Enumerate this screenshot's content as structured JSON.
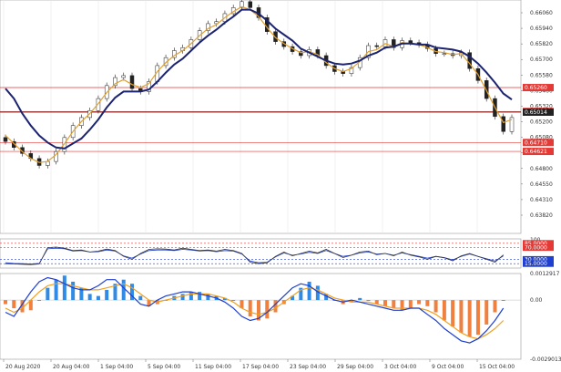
{
  "chart_data": {
    "type": "line",
    "instrument_panels": [
      "price",
      "oscillator",
      "macd"
    ],
    "x_ticks": [
      "20 Aug 2020",
      "20 Aug 04:00",
      "1 Sep 04:00",
      "5 Sep 04:00",
      "11 Sep 04:00",
      "17 Sep 04:00",
      "23 Sep 04:00",
      "29 Sep 04:00",
      "3 Oct 04:00",
      "9 Oct 04:00",
      "15 Oct 04:00"
    ],
    "price": {
      "ylim": [
        0.638,
        0.661
      ],
      "y_ticks": [
        "0.66060",
        "0.65940",
        "0.65820",
        "0.65700",
        "0.65580",
        "0.65460",
        "0.65320",
        "0.65200",
        "0.65080",
        "0.64960",
        "0.64800",
        "0.64550",
        "0.64310",
        "0.63820"
      ],
      "close": [
        0.6472,
        0.6466,
        0.646,
        0.6455,
        0.6448,
        0.6452,
        0.6462,
        0.6476,
        0.6488,
        0.6496,
        0.6503,
        0.6515,
        0.6528,
        0.6536,
        0.6538,
        0.6525,
        0.6522,
        0.6532,
        0.6548,
        0.6556,
        0.6563,
        0.6566,
        0.6574,
        0.6583,
        0.659,
        0.6592,
        0.66,
        0.6606,
        0.6612,
        0.6606,
        0.6596,
        0.6582,
        0.6572,
        0.6567,
        0.6562,
        0.6558,
        0.6564,
        0.6558,
        0.6548,
        0.6542,
        0.654,
        0.6546,
        0.6556,
        0.6568,
        0.6567,
        0.6574,
        0.6566,
        0.6573,
        0.6571,
        0.6569,
        0.6565,
        0.656,
        0.656,
        0.6558,
        0.6561,
        0.6545,
        0.6533,
        0.6515,
        0.6497,
        0.6482,
        0.6496
      ],
      "ma_fast": [
        0.6478,
        0.647,
        0.6462,
        0.6455,
        0.6451,
        0.6452,
        0.6459,
        0.647,
        0.6482,
        0.6492,
        0.65,
        0.651,
        0.6521,
        0.653,
        0.6534,
        0.6529,
        0.6526,
        0.653,
        0.6542,
        0.6551,
        0.6558,
        0.6563,
        0.657,
        0.6578,
        0.6585,
        0.6589,
        0.6596,
        0.6602,
        0.6607,
        0.6604,
        0.6597,
        0.6586,
        0.6576,
        0.657,
        0.6565,
        0.6561,
        0.6562,
        0.6559,
        0.6551,
        0.6545,
        0.6542,
        0.6545,
        0.6552,
        0.6562,
        0.6564,
        0.657,
        0.6567,
        0.6571,
        0.657,
        0.6569,
        0.6566,
        0.6562,
        0.6561,
        0.6559,
        0.656,
        0.655,
        0.6539,
        0.6523,
        0.6506,
        0.6491,
        0.6494
      ],
      "ma_slow": [
        0.6525,
        0.6515,
        0.65,
        0.6488,
        0.6478,
        0.6471,
        0.6466,
        0.6465,
        0.647,
        0.6475,
        0.6484,
        0.6494,
        0.6506,
        0.6516,
        0.6522,
        0.6522,
        0.6522,
        0.6524,
        0.6532,
        0.6541,
        0.6549,
        0.6555,
        0.6563,
        0.6571,
        0.6578,
        0.6584,
        0.6591,
        0.6597,
        0.6604,
        0.6604,
        0.66,
        0.6593,
        0.6585,
        0.6579,
        0.6573,
        0.6565,
        0.6561,
        0.6557,
        0.6553,
        0.655,
        0.6549,
        0.655,
        0.6553,
        0.6558,
        0.6561,
        0.6566,
        0.6567,
        0.657,
        0.657,
        0.6569,
        0.6569,
        0.6566,
        0.6565,
        0.6564,
        0.6562,
        0.6557,
        0.655,
        0.6541,
        0.6531,
        0.652,
        0.6514
      ],
      "levels": [
        {
          "label": "0.65260",
          "value": 0.6526,
          "color": "#e53935"
        },
        {
          "label": "0.65020",
          "value": 0.6502,
          "color": "#e53935"
        },
        {
          "label": "0.65014",
          "value": 0.65014,
          "color": "#222222"
        },
        {
          "label": "0.64710",
          "value": 0.6471,
          "color": "#e53935"
        },
        {
          "label": "0.64621",
          "value": 0.64621,
          "color": "#e53935"
        }
      ]
    },
    "oscillator": {
      "ylim": [
        0,
        100
      ],
      "y_ticks": [
        "100"
      ],
      "levels": [
        {
          "label": "85.0000",
          "value": 85,
          "color": "#e53935"
        },
        {
          "label": "70.0000",
          "value": 70,
          "color": "#e53935"
        },
        {
          "label": "30.0000",
          "value": 30,
          "color": "#1e3fd0"
        },
        {
          "label": "15.0000",
          "value": 15,
          "color": "#1e3fd0"
        }
      ],
      "series_a": [
        15,
        14,
        13,
        12,
        14,
        70,
        72,
        68,
        60,
        62,
        55,
        58,
        65,
        60,
        40,
        30,
        50,
        64,
        66,
        65,
        62,
        68,
        64,
        60,
        62,
        58,
        64,
        60,
        50,
        20,
        15,
        18,
        40,
        55,
        42,
        50,
        58,
        52,
        64,
        50,
        36,
        44,
        55,
        58,
        46,
        50,
        42,
        55,
        44,
        38,
        30,
        40,
        35,
        25,
        42,
        50,
        40,
        30,
        20,
        45
      ],
      "series_b": [
        18,
        16,
        15,
        14,
        16,
        66,
        68,
        66,
        58,
        60,
        55,
        56,
        62,
        58,
        42,
        34,
        48,
        60,
        62,
        62,
        60,
        64,
        62,
        58,
        60,
        56,
        60,
        58,
        48,
        24,
        18,
        20,
        38,
        52,
        44,
        48,
        54,
        50,
        60,
        50,
        40,
        44,
        52,
        55,
        48,
        50,
        44,
        52,
        46,
        40,
        34,
        40,
        36,
        28,
        40,
        48,
        40,
        32,
        24,
        42
      ]
    },
    "macd": {
      "y_ticks": [
        "0.0012917",
        "0.00",
        "-0.0029013"
      ],
      "histogram": [
        -0.0002,
        -0.0004,
        -0.0006,
        -0.0005,
        0.0,
        0.0006,
        0.001,
        0.0012,
        0.0009,
        0.0006,
        0.0003,
        0.0002,
        0.0005,
        0.0008,
        0.001,
        0.0008,
        0.0002,
        -0.0003,
        -0.0002,
        0.0,
        0.0002,
        0.0003,
        0.0004,
        0.0004,
        0.0003,
        0.0002,
        0.0001,
        0.0,
        -0.0004,
        -0.0008,
        -0.001,
        -0.0009,
        -0.0006,
        -0.0002,
        0.0002,
        0.0006,
        0.0009,
        0.0007,
        0.0003,
        0.0,
        -0.0002,
        -0.0001,
        0.0001,
        0.0,
        -0.0002,
        -0.0003,
        -0.0004,
        -0.0005,
        -0.0004,
        -0.0002,
        -0.0003,
        -0.0006,
        -0.001,
        -0.0013,
        -0.0016,
        -0.0018,
        -0.0017,
        -0.0012,
        -0.0006,
        0.0
      ],
      "signal_line": [
        -0.0004,
        -0.0006,
        -0.0004,
        0.0,
        0.0004,
        0.0007,
        0.0008,
        0.0008,
        0.0007,
        0.0006,
        0.0005,
        0.0005,
        0.0006,
        0.0007,
        0.0008,
        0.0006,
        0.0003,
        0.0,
        -0.0001,
        0.0,
        0.0001,
        0.0002,
        0.0003,
        0.0003,
        0.0003,
        0.0002,
        0.0001,
        -0.0001,
        -0.0004,
        -0.0006,
        -0.0007,
        -0.0006,
        -0.0004,
        -0.0001,
        0.0002,
        0.0005,
        0.0006,
        0.0005,
        0.0003,
        0.0001,
        0.0,
        -0.0001,
        -0.0001,
        -0.0001,
        -0.0002,
        -0.0003,
        -0.0004,
        -0.0004,
        -0.0004,
        -0.0004,
        -0.0005,
        -0.0007,
        -0.001,
        -0.0013,
        -0.0016,
        -0.0018,
        -0.0019,
        -0.0017,
        -0.0014,
        -0.001
      ],
      "macd_line": [
        -0.0006,
        -0.0008,
        -0.0002,
        0.0004,
        0.0009,
        0.0011,
        0.001,
        0.0008,
        0.0006,
        0.0005,
        0.0005,
        0.0007,
        0.001,
        0.001,
        0.0006,
        0.0002,
        -0.0002,
        -0.0003,
        0.0,
        0.0002,
        0.0003,
        0.0004,
        0.0004,
        0.0003,
        0.0002,
        0.0001,
        -0.0001,
        -0.0004,
        -0.0008,
        -0.001,
        -0.0009,
        -0.0006,
        -0.0002,
        0.0002,
        0.0006,
        0.0008,
        0.0007,
        0.0004,
        0.0002,
        0.0,
        -0.0001,
        0.0,
        -0.0001,
        -0.0002,
        -0.0003,
        -0.0004,
        -0.0005,
        -0.0005,
        -0.0004,
        -0.0004,
        -0.0007,
        -0.001,
        -0.0014,
        -0.0017,
        -0.002,
        -0.0021,
        -0.0019,
        -0.0015,
        -0.001,
        -0.0004
      ]
    },
    "colors": {
      "candle": "#222222",
      "ma_fast": "#e0a030",
      "ma_slow": "#1c2470",
      "zigzag": "#e53935",
      "osc_a": "#333333",
      "osc_b": "#1e3fd0",
      "hist_pos": "#2f8be6",
      "hist_neg": "#f08040",
      "macd_line": "#1e3fd0",
      "signal_line": "#f0a020",
      "circle": "#e57373"
    }
  }
}
